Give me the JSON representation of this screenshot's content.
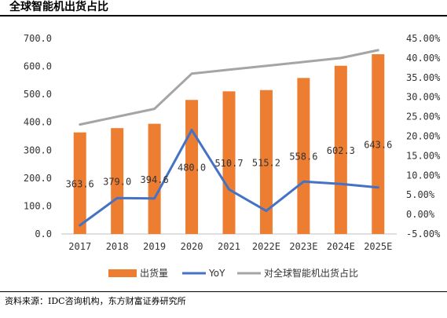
{
  "title": "全球智能机出货占比",
  "source": "资料来源：IDC咨询机构，东方财富证券研究所",
  "chart_data": {
    "type": "bar",
    "categories": [
      "2017",
      "2018",
      "2019",
      "2020",
      "2021",
      "2022E",
      "2023E",
      "2024E",
      "2025E"
    ],
    "series": [
      {
        "name": "出货量",
        "type": "bar",
        "axis": "left",
        "color": "#ED7D31",
        "values": [
          363.6,
          379.0,
          394.6,
          480.0,
          510.7,
          515.2,
          558.6,
          602.3,
          643.6
        ],
        "labels": [
          "363.6",
          "379.0",
          "394.6",
          "480.0",
          "510.7",
          "515.2",
          "558.6",
          "602.3",
          "643.6"
        ]
      },
      {
        "name": "YoY",
        "type": "line",
        "axis": "right",
        "color": "#4472C4",
        "values": [
          -2.8,
          4.2,
          4.1,
          21.6,
          6.4,
          0.9,
          8.4,
          7.8,
          6.9
        ]
      },
      {
        "name": "对全球智能机出货占比",
        "type": "line",
        "axis": "right",
        "color": "#A5A5A5",
        "values": [
          23.0,
          25.0,
          27.0,
          36.0,
          37.0,
          38.0,
          39.0,
          40.0,
          42.0
        ]
      }
    ],
    "y_left": {
      "min": 0,
      "max": 700,
      "step": 100,
      "ticks": [
        "0.0",
        "100.0",
        "200.0",
        "300.0",
        "400.0",
        "500.0",
        "600.0",
        "700.0"
      ]
    },
    "y_right": {
      "min": -5,
      "max": 45,
      "step": 5,
      "unit": "%",
      "ticks": [
        "-5.00%",
        "0.00%",
        "5.00%",
        "10.00%",
        "15.00%",
        "20.00%",
        "25.00%",
        "30.00%",
        "35.00%",
        "40.00%",
        "45.00%"
      ]
    },
    "legend_position": "bottom",
    "grid": false
  }
}
